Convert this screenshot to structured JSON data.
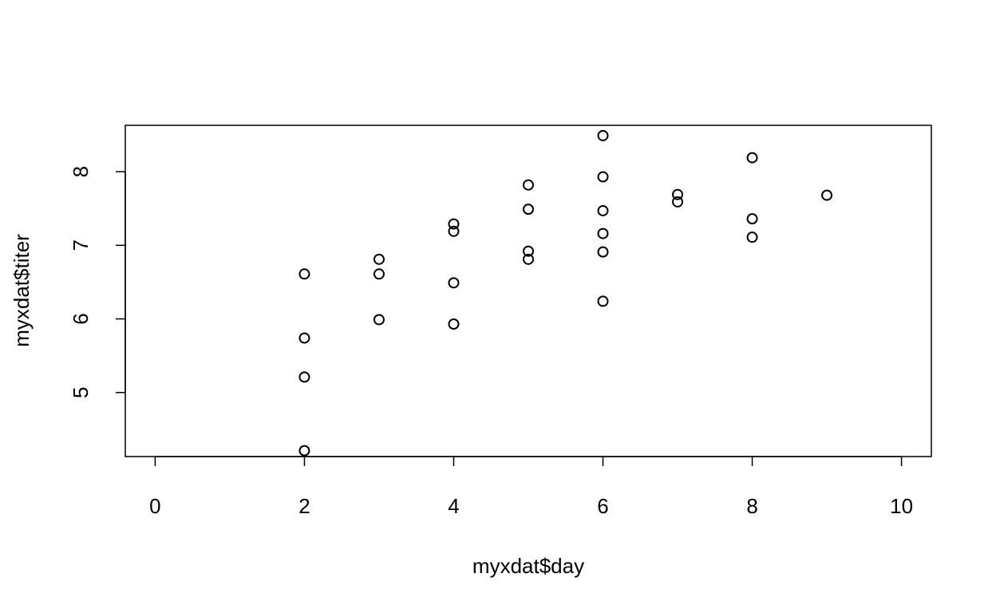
{
  "chart_data": {
    "type": "scatter",
    "title": "",
    "xlabel": "myxdat$day",
    "ylabel": "myxdat$titer",
    "xlim": [
      -0.4,
      10.4
    ],
    "ylim": [
      4.13,
      8.63
    ],
    "x_ticks": [
      0,
      2,
      4,
      6,
      8,
      10
    ],
    "y_ticks": [
      5,
      6,
      7,
      8
    ],
    "grid": false,
    "legend": "none",
    "marker": "open-circle",
    "colors": {
      "marker": "#000000",
      "axis": "#000000",
      "background": "#ffffff"
    },
    "points": [
      {
        "x": 2,
        "y": 6.61
      },
      {
        "x": 2,
        "y": 5.74
      },
      {
        "x": 2,
        "y": 5.21
      },
      {
        "x": 2,
        "y": 4.21
      },
      {
        "x": 3,
        "y": 6.81
      },
      {
        "x": 3,
        "y": 6.61
      },
      {
        "x": 3,
        "y": 5.99
      },
      {
        "x": 4,
        "y": 7.29
      },
      {
        "x": 4,
        "y": 7.19
      },
      {
        "x": 4,
        "y": 6.49
      },
      {
        "x": 4,
        "y": 5.93
      },
      {
        "x": 5,
        "y": 7.82
      },
      {
        "x": 5,
        "y": 7.49
      },
      {
        "x": 5,
        "y": 6.92
      },
      {
        "x": 5,
        "y": 6.81
      },
      {
        "x": 6,
        "y": 8.49
      },
      {
        "x": 6,
        "y": 7.93
      },
      {
        "x": 6,
        "y": 7.47
      },
      {
        "x": 6,
        "y": 7.16
      },
      {
        "x": 6,
        "y": 6.91
      },
      {
        "x": 6,
        "y": 6.24
      },
      {
        "x": 7,
        "y": 7.69
      },
      {
        "x": 7,
        "y": 7.59
      },
      {
        "x": 8,
        "y": 8.19
      },
      {
        "x": 8,
        "y": 7.36
      },
      {
        "x": 8,
        "y": 7.11
      },
      {
        "x": 9,
        "y": 7.68
      }
    ]
  }
}
